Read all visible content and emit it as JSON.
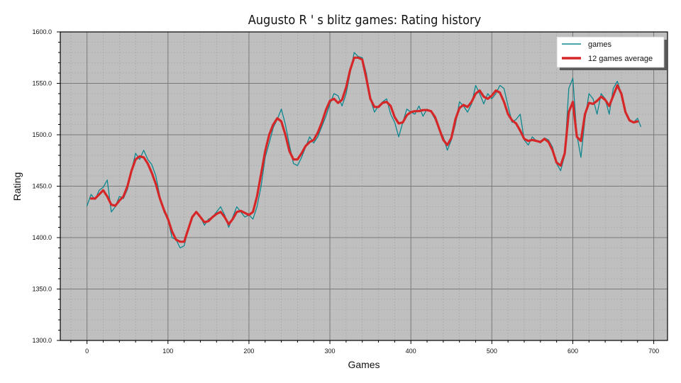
{
  "chart_data": {
    "type": "line",
    "title": "Augusto R ' s blitz games: Rating history",
    "xlabel": "Games",
    "ylabel": "Rating",
    "xlim": [
      -33,
      717
    ],
    "ylim": [
      1300,
      1600
    ],
    "x_ticks": [
      0,
      100,
      200,
      300,
      400,
      500,
      600,
      700
    ],
    "x_tick_labels": [
      "0",
      "100",
      "200",
      "300",
      "400",
      "500",
      "600",
      "700"
    ],
    "y_ticks": [
      1300,
      1350,
      1400,
      1450,
      1500,
      1550,
      1600
    ],
    "y_tick_labels": [
      "1300.0",
      "1350.0",
      "1400.0",
      "1450.0",
      "1500.0",
      "1550.0",
      "1600.0"
    ],
    "grid": true,
    "legend_position": "top-right",
    "colors": {
      "background": "#bfbfbf",
      "games": "#0f878f",
      "average": "#d62728",
      "grid_major": "#7a7a7a",
      "grid_minor": "#a3a3a3"
    },
    "series": [
      {
        "name": "games",
        "x": [
          0,
          5,
          10,
          15,
          20,
          25,
          30,
          35,
          40,
          45,
          50,
          55,
          60,
          65,
          70,
          75,
          80,
          85,
          90,
          95,
          100,
          105,
          110,
          115,
          120,
          125,
          130,
          135,
          140,
          145,
          150,
          155,
          160,
          165,
          170,
          175,
          180,
          185,
          190,
          195,
          200,
          205,
          210,
          215,
          220,
          225,
          230,
          235,
          240,
          245,
          250,
          255,
          260,
          265,
          270,
          275,
          280,
          285,
          290,
          295,
          300,
          305,
          310,
          315,
          320,
          325,
          330,
          335,
          340,
          345,
          350,
          355,
          360,
          365,
          370,
          375,
          380,
          385,
          390,
          395,
          400,
          405,
          410,
          415,
          420,
          425,
          430,
          435,
          440,
          445,
          450,
          455,
          460,
          465,
          470,
          475,
          480,
          485,
          490,
          495,
          500,
          505,
          510,
          515,
          520,
          525,
          530,
          535,
          540,
          545,
          550,
          555,
          560,
          565,
          570,
          575,
          580,
          585,
          590,
          595,
          600,
          605,
          610,
          615,
          620,
          625,
          630,
          635,
          640,
          645,
          650,
          655,
          660,
          665,
          670,
          675,
          680,
          684
        ],
        "y": [
          1431,
          1442,
          1437,
          1446,
          1449,
          1456,
          1425,
          1430,
          1440,
          1438,
          1447,
          1465,
          1482,
          1476,
          1485,
          1476,
          1471,
          1460,
          1440,
          1425,
          1418,
          1400,
          1398,
          1390,
          1392,
          1408,
          1420,
          1425,
          1420,
          1412,
          1418,
          1420,
          1425,
          1430,
          1422,
          1410,
          1420,
          1430,
          1425,
          1420,
          1422,
          1418,
          1430,
          1450,
          1478,
          1492,
          1507,
          1515,
          1525,
          1510,
          1490,
          1472,
          1470,
          1478,
          1488,
          1498,
          1492,
          1498,
          1508,
          1518,
          1530,
          1540,
          1538,
          1528,
          1540,
          1560,
          1580,
          1576,
          1575,
          1560,
          1535,
          1522,
          1528,
          1532,
          1535,
          1520,
          1512,
          1498,
          1512,
          1525,
          1522,
          1520,
          1528,
          1518,
          1525,
          1522,
          1515,
          1505,
          1498,
          1485,
          1495,
          1510,
          1532,
          1528,
          1522,
          1530,
          1548,
          1540,
          1530,
          1540,
          1535,
          1540,
          1548,
          1545,
          1528,
          1512,
          1515,
          1520,
          1495,
          1490,
          1498,
          1494,
          1492,
          1497,
          1495,
          1488,
          1472,
          1465,
          1480,
          1545,
          1555,
          1500,
          1478,
          1515,
          1540,
          1535,
          1520,
          1540,
          1535,
          1520,
          1545,
          1552,
          1540,
          1522,
          1515,
          1512,
          1516,
          1508
        ]
      },
      {
        "name": "12 games average",
        "x": [
          5,
          10,
          15,
          20,
          25,
          30,
          35,
          40,
          45,
          50,
          55,
          60,
          65,
          70,
          75,
          80,
          85,
          90,
          95,
          100,
          105,
          110,
          115,
          120,
          125,
          130,
          135,
          140,
          145,
          150,
          155,
          160,
          165,
          170,
          175,
          180,
          185,
          190,
          195,
          200,
          205,
          210,
          215,
          220,
          225,
          230,
          235,
          240,
          245,
          250,
          255,
          260,
          265,
          270,
          275,
          280,
          285,
          290,
          295,
          300,
          305,
          310,
          315,
          320,
          325,
          330,
          335,
          340,
          345,
          350,
          355,
          360,
          365,
          370,
          375,
          380,
          385,
          390,
          395,
          400,
          405,
          410,
          415,
          420,
          425,
          430,
          435,
          440,
          445,
          450,
          455,
          460,
          465,
          470,
          475,
          480,
          485,
          490,
          495,
          500,
          505,
          510,
          515,
          520,
          525,
          530,
          535,
          540,
          545,
          550,
          555,
          560,
          565,
          570,
          575,
          580,
          585,
          590,
          595,
          600,
          605,
          610,
          615,
          620,
          625,
          630,
          635,
          640,
          645,
          650,
          655,
          660,
          665,
          670,
          675,
          680
        ],
        "y": [
          1438,
          1438,
          1442,
          1446,
          1440,
          1432,
          1431,
          1436,
          1440,
          1450,
          1465,
          1476,
          1479,
          1478,
          1472,
          1463,
          1452,
          1438,
          1427,
          1418,
          1406,
          1398,
          1396,
          1396,
          1408,
          1420,
          1425,
          1420,
          1415,
          1416,
          1420,
          1423,
          1425,
          1420,
          1413,
          1418,
          1425,
          1426,
          1424,
          1422,
          1425,
          1440,
          1462,
          1484,
          1500,
          1510,
          1516,
          1513,
          1500,
          1484,
          1476,
          1476,
          1482,
          1489,
          1493,
          1495,
          1502,
          1512,
          1524,
          1533,
          1535,
          1531,
          1534,
          1546,
          1563,
          1575,
          1575,
          1573,
          1555,
          1535,
          1527,
          1527,
          1531,
          1532,
          1528,
          1517,
          1511,
          1512,
          1519,
          1522,
          1523,
          1523,
          1524,
          1524,
          1523,
          1517,
          1506,
          1495,
          1490,
          1497,
          1515,
          1526,
          1529,
          1527,
          1532,
          1540,
          1543,
          1537,
          1535,
          1538,
          1543,
          1541,
          1532,
          1520,
          1514,
          1511,
          1504,
          1496,
          1494,
          1495,
          1494,
          1493,
          1496,
          1493,
          1485,
          1473,
          1470,
          1482,
          1522,
          1532,
          1498,
          1494,
          1520,
          1531,
          1530,
          1533,
          1537,
          1534,
          1528,
          1538,
          1548,
          1540,
          1522,
          1514,
          1512,
          1513
        ]
      }
    ]
  }
}
